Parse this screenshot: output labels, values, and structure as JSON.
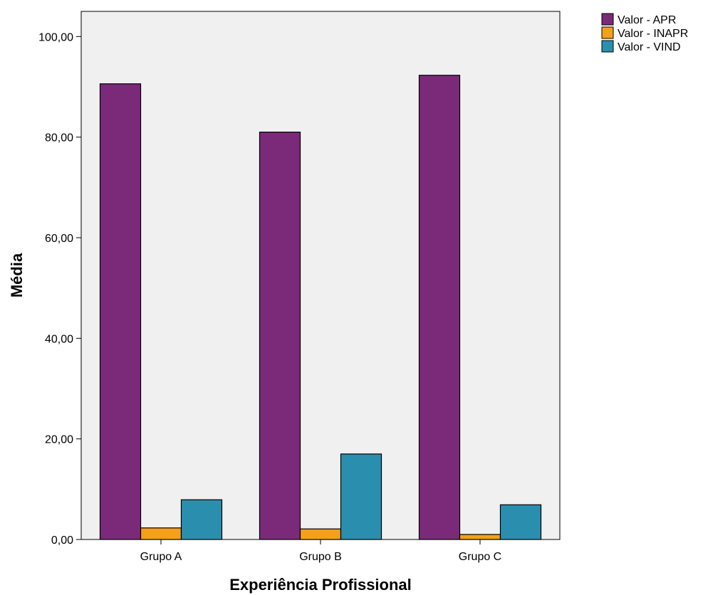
{
  "chart_data": {
    "type": "bar",
    "title": "",
    "xlabel": "Experiência Profissional",
    "ylabel": "Média",
    "categories": [
      "Grupo A",
      "Grupo B",
      "Grupo C"
    ],
    "series": [
      {
        "name": "Valor - APR",
        "values": [
          90.6,
          81.0,
          92.3
        ],
        "color": "#7b2a7a"
      },
      {
        "name": "Valor - INAPR",
        "values": [
          2.3,
          2.1,
          1.0
        ],
        "color": "#f5a01a"
      },
      {
        "name": "Valor - VIND",
        "values": [
          7.9,
          17.0,
          6.9
        ],
        "color": "#2a8fae"
      }
    ],
    "ylim": [
      0,
      105
    ],
    "yticks": [
      0,
      20,
      40,
      60,
      80,
      100
    ],
    "ytick_labels": [
      "0,00",
      "20,00",
      "40,00",
      "60,00",
      "80,00",
      "100,00"
    ],
    "grid": false,
    "plot_background": "#f0f0f0",
    "legend_position": "top-right-outside"
  }
}
